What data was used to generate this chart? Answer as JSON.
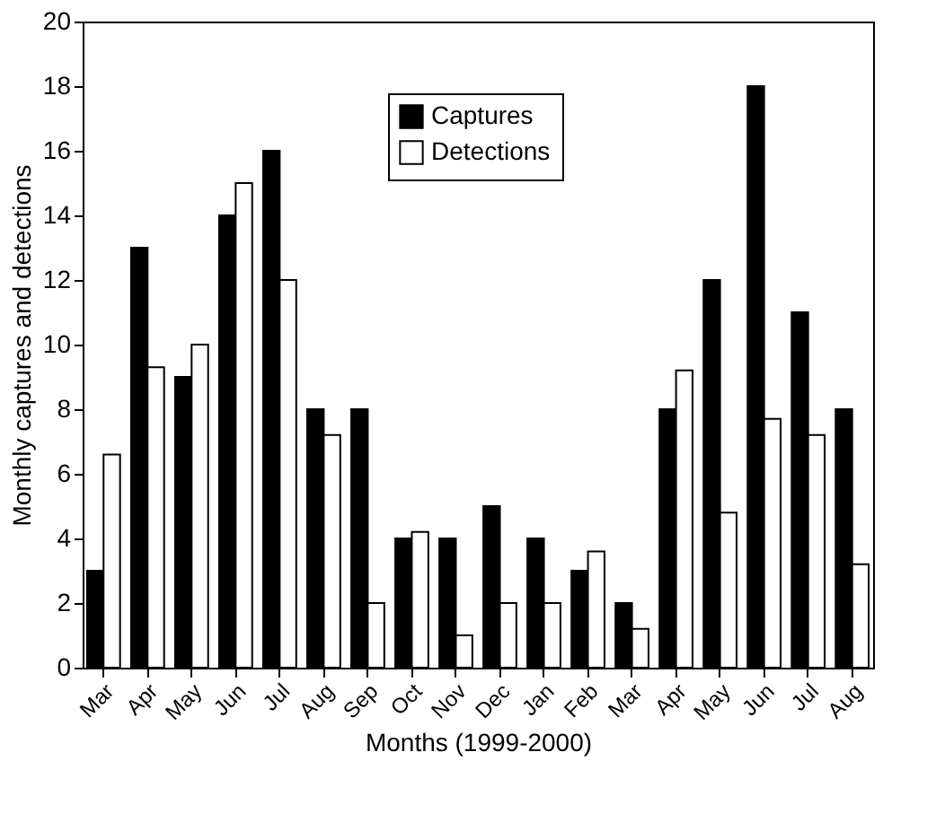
{
  "chart_data": {
    "type": "bar",
    "xlabel": "Months (1999-2000)",
    "ylabel": "Monthly captures and detections",
    "categories": [
      "Mar",
      "Apr",
      "May",
      "Jun",
      "Jul",
      "Aug",
      "Sep",
      "Oct",
      "Nov",
      "Dec",
      "Jan",
      "Feb",
      "Mar",
      "Apr",
      "May",
      "Jun",
      "Jul",
      "Aug"
    ],
    "series": [
      {
        "name": "Captures",
        "color": "#000000",
        "values": [
          3,
          13,
          9,
          14,
          16,
          8,
          8,
          4,
          4,
          5,
          4,
          3,
          2,
          8,
          12,
          18,
          11,
          8
        ]
      },
      {
        "name": "Detections",
        "color": "#ffffff",
        "values": [
          6.6,
          9.3,
          10,
          15,
          12,
          7.2,
          2,
          4.2,
          1,
          2,
          2,
          3.6,
          1.2,
          9.2,
          4.8,
          7.7,
          7.2,
          3.2
        ]
      }
    ],
    "ylim": [
      0,
      20
    ],
    "yticks": [
      0,
      2,
      4,
      6,
      8,
      10,
      12,
      14,
      16,
      18,
      20
    ],
    "grid": false,
    "legend": "top"
  }
}
